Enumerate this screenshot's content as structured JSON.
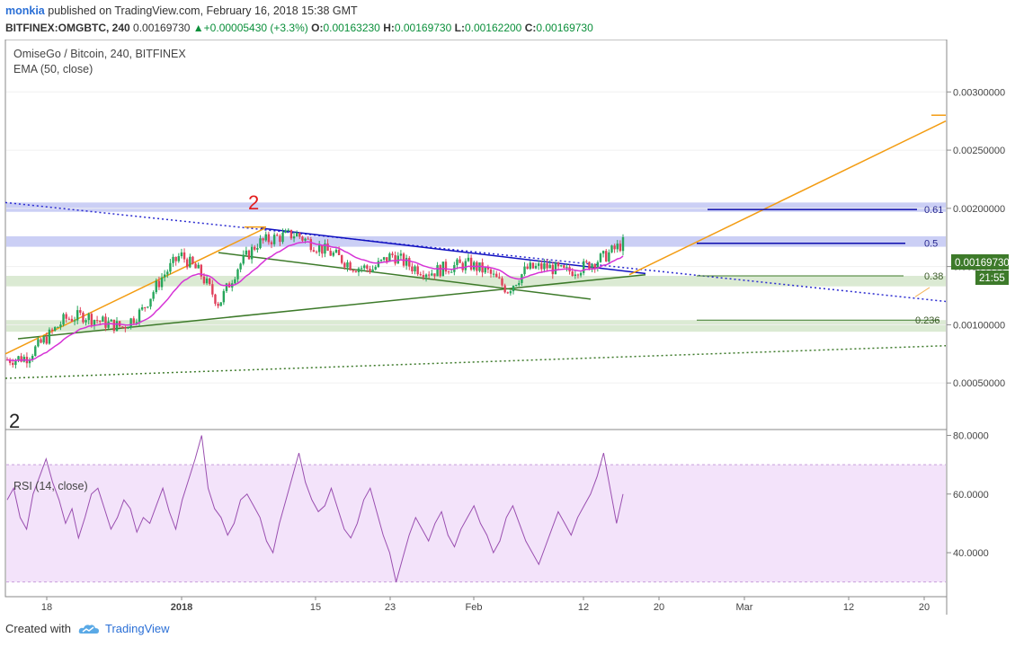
{
  "header": {
    "user": "monkia",
    "published_text": "published on TradingView.com, February 16, 2018 15:38 GMT",
    "symbol": "BITFINEX:OMGBTC, 240",
    "last": "0.00169730",
    "change": "+0.00005430 (+3.3%)",
    "o_label": "O:",
    "o_value": "0.00163230",
    "h_label": "H:",
    "h_value": "0.00169730",
    "l_label": "L:",
    "l_value": "0.00162200",
    "c_label": "C:",
    "c_value": "0.00169730"
  },
  "chart_data": [
    {
      "type": "candlestick",
      "title": "OmiseGo / Bitcoin, 240, BITFINEX",
      "indicator_label": "EMA (50, close)",
      "ylim": [
        0.0001,
        0.00345
      ],
      "y_ticks": [
        "0.00050000",
        "0.00100000",
        "0.00150000",
        "0.00200000",
        "0.00250000",
        "0.00300000"
      ],
      "x_ticks": [
        "18",
        "2018",
        "15",
        "23",
        "Feb",
        "12",
        "20",
        "Mar",
        "12",
        "20"
      ],
      "last_price_label": "0.00169730",
      "countdown_label": "21:55",
      "close_path": [
        {
          "t": 0,
          "v": 0.0007
        },
        {
          "t": 3,
          "v": 0.00072
        },
        {
          "t": 6,
          "v": 0.00088
        },
        {
          "t": 9,
          "v": 0.00105
        },
        {
          "t": 12,
          "v": 0.00108
        },
        {
          "t": 15,
          "v": 0.00102
        },
        {
          "t": 18,
          "v": 0.00098
        },
        {
          "t": 21,
          "v": 0.00112
        },
        {
          "t": 24,
          "v": 0.0014
        },
        {
          "t": 27,
          "v": 0.0016
        },
        {
          "t": 30,
          "v": 0.00145
        },
        {
          "t": 33,
          "v": 0.00118
        },
        {
          "t": 36,
          "v": 0.0015
        },
        {
          "t": 39,
          "v": 0.0017
        },
        {
          "t": 42,
          "v": 0.00175
        },
        {
          "t": 45,
          "v": 0.00178
        },
        {
          "t": 48,
          "v": 0.00168
        },
        {
          "t": 51,
          "v": 0.0016
        },
        {
          "t": 54,
          "v": 0.0015
        },
        {
          "t": 57,
          "v": 0.00148
        },
        {
          "t": 60,
          "v": 0.0016
        },
        {
          "t": 63,
          "v": 0.0015
        },
        {
          "t": 66,
          "v": 0.00145
        },
        {
          "t": 69,
          "v": 0.0015
        },
        {
          "t": 72,
          "v": 0.00152
        },
        {
          "t": 75,
          "v": 0.00145
        },
        {
          "t": 78,
          "v": 0.0013
        },
        {
          "t": 81,
          "v": 0.00148
        },
        {
          "t": 84,
          "v": 0.0015
        },
        {
          "t": 87,
          "v": 0.00145
        },
        {
          "t": 90,
          "v": 0.0015
        },
        {
          "t": 93,
          "v": 0.00158
        },
        {
          "t": 96,
          "v": 0.0017
        }
      ],
      "fib_levels": [
        {
          "label": "0.61",
          "value": 0.00199
        },
        {
          "label": "0.5",
          "value": 0.0017
        },
        {
          "label": "0.38",
          "value": 0.00142
        },
        {
          "label": "0.236",
          "value": 0.00104
        }
      ],
      "zones": [
        {
          "from": 0.00197,
          "to": 0.00205,
          "color": "#b9bff2"
        },
        {
          "from": 0.00167,
          "to": 0.00176,
          "color": "#b9bff2"
        },
        {
          "from": 0.00133,
          "to": 0.00142,
          "color": "#cfe3c4"
        },
        {
          "from": 0.00094,
          "to": 0.00104,
          "color": "#cfe3c4"
        }
      ],
      "wave_labels": [
        "2",
        "2"
      ],
      "colors": {
        "up": "#26a65b",
        "down": "#e0405b",
        "ema": "#d633d6",
        "fib_high": "#0d0dae",
        "fib_low": "#3d7a2a",
        "trend": "#f39c12"
      }
    },
    {
      "type": "line",
      "title": "RSI (14, close)",
      "ylim": [
        25,
        82
      ],
      "band": [
        30,
        70
      ],
      "y_ticks": [
        "40.0000",
        "60.0000",
        "80.0000"
      ],
      "values": [
        58,
        62,
        52,
        48,
        60,
        66,
        72,
        64,
        58,
        50,
        55,
        45,
        52,
        60,
        62,
        55,
        48,
        52,
        58,
        55,
        47,
        52,
        50,
        56,
        62,
        54,
        48,
        58,
        65,
        72,
        80,
        62,
        55,
        52,
        46,
        50,
        58,
        60,
        56,
        52,
        44,
        40,
        50,
        58,
        66,
        74,
        64,
        58,
        54,
        56,
        62,
        55,
        48,
        45,
        50,
        58,
        62,
        54,
        46,
        40,
        30,
        38,
        46,
        52,
        48,
        44,
        50,
        54,
        46,
        42,
        48,
        52,
        56,
        50,
        46,
        40,
        44,
        52,
        56,
        50,
        44,
        40,
        36,
        42,
        48,
        54,
        50,
        46,
        52,
        56,
        60,
        66,
        74,
        62,
        50,
        60
      ],
      "color": "#9a4fb0"
    }
  ],
  "footer": {
    "created_with": "Created with",
    "brand": "TradingView"
  }
}
